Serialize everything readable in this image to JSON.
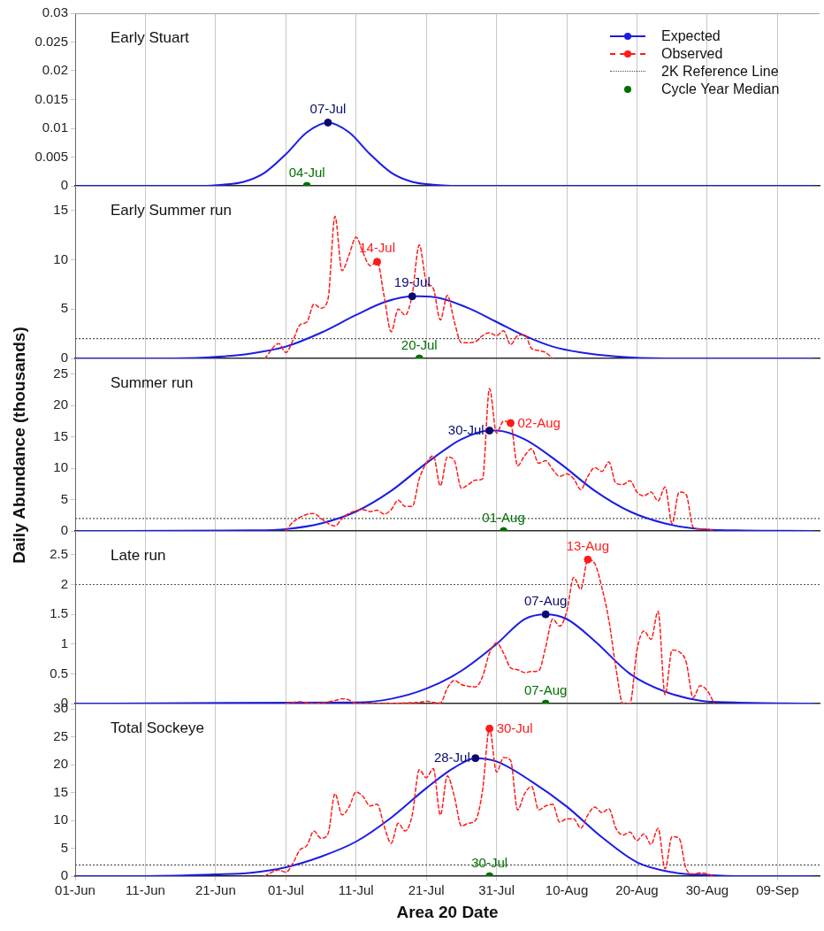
{
  "chart_data": [
    {
      "type": "line",
      "title": "Early Stuart",
      "xlim": [
        "--06-01",
        "--09-15"
      ],
      "xticks": [
        {
          "value": "--06-01",
          "label": "01-Jun"
        },
        {
          "value": "--06-11",
          "label": "11-Jun"
        },
        {
          "value": "--06-21",
          "label": "21-Jun"
        },
        {
          "value": "--07-01",
          "label": "01-Jul"
        },
        {
          "value": "--07-11",
          "label": "11-Jul"
        },
        {
          "value": "--07-21",
          "label": "21-Jul"
        },
        {
          "value": "--07-31",
          "label": "31-Jul"
        },
        {
          "value": "--08-10",
          "label": "10-Aug"
        },
        {
          "value": "--08-20",
          "label": "20-Aug"
        },
        {
          "value": "--08-30",
          "label": "30-Aug"
        },
        {
          "value": "--09-09",
          "label": "09-Sep"
        }
      ],
      "ylim": [
        0,
        0.03
      ],
      "yticks": [
        0,
        0.005,
        0.01,
        0.015,
        0.02,
        0.025,
        0.03
      ],
      "grid": "x",
      "tick_labels": "y",
      "series": [
        {
          "color": "#1c1ce6",
          "x": [
            "--06-01",
            "--06-19",
            "--06-22",
            "--06-25",
            "--06-28",
            "--07-01",
            "--07-04",
            "--07-07",
            "--07-10",
            "--07-13",
            "--07-16",
            "--07-19",
            "--07-22",
            "--07-25",
            "--09-14"
          ],
          "values": [
            0,
            0,
            0.0002,
            0.0007,
            0.0023,
            0.0055,
            0.0093,
            0.011,
            0.0093,
            0.0055,
            0.0023,
            0.0007,
            0.0002,
            0,
            0
          ]
        },
        {
          "type": "scatter",
          "color": "#0a0a70",
          "x": [
            "--07-07"
          ],
          "values": [
            0.011
          ]
        },
        {
          "type": "scatter",
          "color": "#007000",
          "x": [
            "--07-04"
          ],
          "values": [
            0
          ]
        }
      ],
      "annotations": [
        {
          "text": "07-Jul",
          "x": "--07-07",
          "y": 0.011
        },
        {
          "text": "04-Jul",
          "x": "--07-04",
          "y": 0
        }
      ]
    },
    {
      "type": "line",
      "title": "Early Summer run",
      "xlim": [
        "--06-01",
        "--09-15"
      ],
      "xticks": [
        {
          "value": "--06-01",
          "label": "01-Jun"
        },
        {
          "value": "--06-11",
          "label": "11-Jun"
        },
        {
          "value": "--06-21",
          "label": "21-Jun"
        },
        {
          "value": "--07-01",
          "label": "01-Jul"
        },
        {
          "value": "--07-11",
          "label": "11-Jul"
        },
        {
          "value": "--07-21",
          "label": "21-Jul"
        },
        {
          "value": "--07-31",
          "label": "31-Jul"
        },
        {
          "value": "--08-10",
          "label": "10-Aug"
        },
        {
          "value": "--08-20",
          "label": "20-Aug"
        },
        {
          "value": "--08-30",
          "label": "30-Aug"
        },
        {
          "value": "--09-09",
          "label": "09-Sep"
        }
      ],
      "ylim": [
        0,
        17.5
      ],
      "yticks": [
        0,
        5,
        10,
        15
      ],
      "grid": "x",
      "tick_labels": "y",
      "legend": "top right",
      "series": [
        {
          "name": "Expected",
          "color": "#1c1ce6",
          "x": [
            "--06-01",
            "--06-15",
            "--06-22",
            "--06-26",
            "--07-01",
            "--07-06",
            "--07-11",
            "--07-15",
            "--07-19",
            "--07-20",
            "--07-23",
            "--07-27",
            "--07-31",
            "--08-04",
            "--08-08",
            "--08-12",
            "--08-17",
            "--08-24",
            "--09-14"
          ],
          "values": [
            0,
            0,
            0.2,
            0.5,
            1.2,
            2.6,
            4.4,
            5.7,
            6.3,
            6.3,
            6.1,
            5.1,
            3.7,
            2.3,
            1.2,
            0.6,
            0.2,
            0,
            0
          ]
        },
        {
          "name": "Observed",
          "line_style": "dashed",
          "color": "#ff1a1a",
          "x": [
            "--06-28",
            "--06-30",
            "--07-01",
            "--07-02",
            "--07-03",
            "--07-04",
            "--07-05",
            "--07-06",
            "--07-07",
            "--07-08",
            "--07-09",
            "--07-10",
            "--07-11",
            "--07-12",
            "--07-13",
            "--07-14",
            "--07-15",
            "--07-16",
            "--07-17",
            "--07-18",
            "--07-19",
            "--07-20",
            "--07-21",
            "--07-22",
            "--07-23",
            "--07-24",
            "--07-25",
            "--07-26",
            "--07-27",
            "--07-28",
            "--07-29",
            "--07-30",
            "--07-31",
            "--08-01",
            "--08-02",
            "--08-03",
            "--08-04",
            "--08-05",
            "--08-06",
            "--08-07",
            "--08-08"
          ],
          "values": [
            0,
            1.5,
            0.6,
            1.8,
            3.4,
            3.7,
            5.5,
            5.1,
            6.0,
            14.4,
            8.9,
            10.5,
            12.3,
            10.7,
            9.4,
            9.8,
            6.3,
            2.7,
            5.0,
            4.4,
            6.5,
            11.5,
            7.8,
            7.1,
            3.9,
            6.4,
            3.7,
            1.6,
            1.6,
            1.7,
            2.3,
            2.6,
            2.3,
            2.8,
            1.4,
            2.3,
            2.4,
            1.0,
            0.8,
            0.6,
            0
          ]
        },
        {
          "type": "scatter",
          "color": "#ff1a1a",
          "x": [
            "--07-14"
          ],
          "values": [
            9.8
          ]
        },
        {
          "type": "scatter",
          "color": "#0a0a70",
          "x": [
            "--07-19"
          ],
          "values": [
            6.3
          ]
        },
        {
          "name": "Cycle Year Median",
          "type": "scatter",
          "color": "#007000",
          "x": [
            "--07-20"
          ],
          "values": [
            0
          ]
        }
      ],
      "ref_lines": [
        {
          "axis": "y",
          "value": 2,
          "label": "2K Reference Line",
          "color": "#555555",
          "line_style": "dotted"
        }
      ],
      "annotations": [
        {
          "text": "14-Jul",
          "x": "--07-14",
          "y": 9.8
        },
        {
          "text": "19-Jul",
          "x": "--07-19",
          "y": 6.3
        },
        {
          "text": "20-Jul",
          "x": "--07-20",
          "y": 0
        }
      ]
    },
    {
      "type": "line",
      "title": "Summer run",
      "ylabel": "Daily Abundance (thousands)",
      "xlim": [
        "--06-01",
        "--09-15"
      ],
      "xticks": [
        {
          "value": "--06-01",
          "label": "01-Jun"
        },
        {
          "value": "--06-11",
          "label": "11-Jun"
        },
        {
          "value": "--06-21",
          "label": "21-Jun"
        },
        {
          "value": "--07-01",
          "label": "01-Jul"
        },
        {
          "value": "--07-11",
          "label": "11-Jul"
        },
        {
          "value": "--07-21",
          "label": "21-Jul"
        },
        {
          "value": "--07-31",
          "label": "31-Jul"
        },
        {
          "value": "--08-10",
          "label": "10-Aug"
        },
        {
          "value": "--08-20",
          "label": "20-Aug"
        },
        {
          "value": "--08-30",
          "label": "30-Aug"
        },
        {
          "value": "--09-09",
          "label": "09-Sep"
        }
      ],
      "ylim": [
        0,
        27.5
      ],
      "yticks": [
        0,
        5,
        10,
        15,
        20,
        25
      ],
      "grid": "x",
      "tick_labels": "y",
      "series": [
        {
          "color": "#1c1ce6",
          "x": [
            "--06-01",
            "--06-26",
            "--07-01",
            "--07-06",
            "--07-11",
            "--07-16",
            "--07-21",
            "--07-26",
            "--07-30",
            "--07-31",
            "--08-04",
            "--08-09",
            "--08-14",
            "--08-19",
            "--08-24",
            "--08-29",
            "--09-03",
            "--09-14"
          ],
          "values": [
            0,
            0.1,
            0.3,
            1.2,
            3.1,
            6.4,
            10.8,
            14.6,
            16.0,
            16.0,
            14.6,
            10.8,
            6.4,
            3.1,
            1.2,
            0.3,
            0.1,
            0
          ]
        },
        {
          "line_style": "dashed",
          "color": "#ff1a1a",
          "x": [
            "--07-01",
            "--07-02",
            "--07-05",
            "--07-06",
            "--07-08",
            "--07-09",
            "--07-10",
            "--07-12",
            "--07-13",
            "--07-14",
            "--07-15",
            "--07-16",
            "--07-17",
            "--07-18",
            "--07-19",
            "--07-20",
            "--07-21",
            "--07-22",
            "--07-23",
            "--07-24",
            "--07-25",
            "--07-26",
            "--07-27",
            "--07-28",
            "--07-29",
            "--07-30",
            "--07-31",
            "--08-01",
            "--08-02",
            "--08-03",
            "--08-04",
            "--08-05",
            "--08-06",
            "--08-07",
            "--08-08",
            "--08-09",
            "--08-10",
            "--08-11",
            "--08-12",
            "--08-13",
            "--08-14",
            "--08-15",
            "--08-16",
            "--08-17",
            "--08-18",
            "--08-19",
            "--08-20",
            "--08-21",
            "--08-22",
            "--08-23",
            "--08-24",
            "--08-25",
            "--08-26",
            "--08-27",
            "--08-28",
            "--08-29",
            "--08-30",
            "--08-31"
          ],
          "values": [
            0,
            1.4,
            2.8,
            2.0,
            0.8,
            2.0,
            2.8,
            3.4,
            3.1,
            3.3,
            2.7,
            3.4,
            4.9,
            3.9,
            3.9,
            8.3,
            10.8,
            12.0,
            7.2,
            11.8,
            11.2,
            6.8,
            7.4,
            8.1,
            8.3,
            22.7,
            15.6,
            17.5,
            17.2,
            10.4,
            12.0,
            13.1,
            10.8,
            11.2,
            9.8,
            8.7,
            9.1,
            8.3,
            6.6,
            8.7,
            10.1,
            9.5,
            11.0,
            7.6,
            7.4,
            8.0,
            6.2,
            5.6,
            6.2,
            4.8,
            7.0,
            1.2,
            6.2,
            5.8,
            0.6,
            0.3,
            0.3,
            0
          ]
        },
        {
          "type": "scatter",
          "color": "#0a0a70",
          "x": [
            "--07-30"
          ],
          "values": [
            16.0
          ]
        },
        {
          "type": "scatter",
          "color": "#ff1a1a",
          "x": [
            "--08-02"
          ],
          "values": [
            17.2
          ]
        },
        {
          "type": "scatter",
          "color": "#007000",
          "x": [
            "--08-01"
          ],
          "values": [
            0
          ]
        }
      ],
      "ref_lines": [
        {
          "axis": "y",
          "value": 2,
          "color": "#555555",
          "line_style": "dotted"
        }
      ],
      "annotations": [
        {
          "text": "30-Jul",
          "x": "--07-30",
          "y": 16.0
        },
        {
          "text": "02-Aug",
          "x": "--08-02",
          "y": 17.2
        },
        {
          "text": "01-Aug",
          "x": "--08-01",
          "y": 0
        }
      ]
    },
    {
      "type": "line",
      "title": "Late run",
      "xlim": [
        "--06-01",
        "--09-15"
      ],
      "xticks": [
        {
          "value": "--06-01",
          "label": "01-Jun"
        },
        {
          "value": "--06-11",
          "label": "11-Jun"
        },
        {
          "value": "--06-21",
          "label": "21-Jun"
        },
        {
          "value": "--07-01",
          "label": "01-Jul"
        },
        {
          "value": "--07-11",
          "label": "11-Jul"
        },
        {
          "value": "--07-21",
          "label": "21-Jul"
        },
        {
          "value": "--07-31",
          "label": "31-Jul"
        },
        {
          "value": "--08-10",
          "label": "10-Aug"
        },
        {
          "value": "--08-20",
          "label": "20-Aug"
        },
        {
          "value": "--08-30",
          "label": "30-Aug"
        },
        {
          "value": "--09-09",
          "label": "09-Sep"
        }
      ],
      "ylim": [
        0,
        2.9
      ],
      "yticks": [
        0,
        0.5,
        1,
        1.5,
        2,
        2.5
      ],
      "grid": "x",
      "tick_labels": "y",
      "series": [
        {
          "color": "#1c1ce6",
          "x": [
            "--06-01",
            "--07-11",
            "--07-16",
            "--07-21",
            "--07-26",
            "--07-31",
            "--08-04",
            "--08-07",
            "--08-10",
            "--08-14",
            "--08-19",
            "--08-24",
            "--08-29",
            "--09-03",
            "--09-14"
          ],
          "values": [
            0,
            0.02,
            0.08,
            0.25,
            0.55,
            1.0,
            1.42,
            1.5,
            1.42,
            1.05,
            0.5,
            0.2,
            0.05,
            0.02,
            0
          ]
        },
        {
          "line_style": "dashed",
          "color": "#ff1a1a",
          "x": [
            "--07-01",
            "--07-03",
            "--07-05",
            "--07-08",
            "--07-09",
            "--07-10",
            "--07-11",
            "--07-20",
            "--07-21",
            "--07-22",
            "--07-23",
            "--07-24",
            "--07-25",
            "--07-26",
            "--07-27",
            "--07-28",
            "--07-29",
            "--07-30",
            "--07-31",
            "--08-01",
            "--08-02",
            "--08-03",
            "--08-04",
            "--08-05",
            "--08-06",
            "--08-07",
            "--08-08",
            "--08-09",
            "--08-10",
            "--08-11",
            "--08-12",
            "--08-13",
            "--08-14",
            "--08-15",
            "--08-16",
            "--08-17",
            "--08-18",
            "--08-19",
            "--08-20",
            "--08-21",
            "--08-22",
            "--08-23",
            "--08-24",
            "--08-25",
            "--08-26",
            "--08-27",
            "--08-28",
            "--08-29",
            "--08-30",
            "--08-31"
          ],
          "values": [
            0,
            0.03,
            0,
            0.05,
            0.08,
            0.06,
            0,
            0.02,
            0.04,
            0.02,
            0.01,
            0.26,
            0.39,
            0.32,
            0.29,
            0.28,
            0.45,
            0.85,
            1.02,
            0.85,
            0.6,
            0.57,
            0.52,
            0.54,
            0.55,
            0.95,
            1.42,
            1.3,
            1.55,
            2.12,
            1.92,
            2.42,
            2.35,
            1.95,
            1.4,
            0.6,
            0,
            0,
            0.9,
            1.22,
            1.08,
            1.55,
            0.15,
            0.9,
            0.87,
            0.7,
            0.1,
            0.3,
            0.22,
            0
          ]
        },
        {
          "type": "scatter",
          "color": "#ff1a1a",
          "x": [
            "--08-13"
          ],
          "values": [
            2.42
          ]
        },
        {
          "type": "scatter",
          "color": "#0a0a70",
          "x": [
            "--08-07"
          ],
          "values": [
            1.5
          ]
        },
        {
          "type": "scatter",
          "color": "#007000",
          "x": [
            "--08-07"
          ],
          "values": [
            0
          ]
        }
      ],
      "ref_lines": [
        {
          "axis": "y",
          "value": 2,
          "color": "#555555",
          "line_style": "dotted"
        }
      ],
      "annotations": [
        {
          "text": "13-Aug",
          "x": "--08-13",
          "y": 2.42
        },
        {
          "text": "07-Aug",
          "x": "--08-07",
          "y": 1.5
        },
        {
          "text": "07-Aug",
          "x": "--08-07",
          "y": 0
        }
      ]
    },
    {
      "type": "line",
      "title": "Total Sockeye",
      "xlabel": "Area 20 Date",
      "xlim": [
        "--06-01",
        "--09-15"
      ],
      "xticks": [
        {
          "value": "--06-01",
          "label": "01-Jun"
        },
        {
          "value": "--06-11",
          "label": "11-Jun"
        },
        {
          "value": "--06-21",
          "label": "21-Jun"
        },
        {
          "value": "--07-01",
          "label": "01-Jul"
        },
        {
          "value": "--07-11",
          "label": "11-Jul"
        },
        {
          "value": "--07-21",
          "label": "21-Jul"
        },
        {
          "value": "--07-31",
          "label": "31-Jul"
        },
        {
          "value": "--08-10",
          "label": "10-Aug"
        },
        {
          "value": "--08-20",
          "label": "20-Aug"
        },
        {
          "value": "--08-30",
          "label": "30-Aug"
        },
        {
          "value": "--09-09",
          "label": "09-Sep"
        }
      ],
      "ylim": [
        0,
        31
      ],
      "yticks": [
        0,
        5,
        10,
        15,
        20,
        25,
        30
      ],
      "grid": "x",
      "series": [
        {
          "color": "#1c1ce6",
          "x": [
            "--06-01",
            "--06-11",
            "--06-21",
            "--06-26",
            "--07-01",
            "--07-06",
            "--07-11",
            "--07-16",
            "--07-21",
            "--07-25",
            "--07-28",
            "--07-31",
            "--08-05",
            "--08-10",
            "--08-15",
            "--08-20",
            "--08-25",
            "--08-30",
            "--09-04",
            "--09-14"
          ],
          "values": [
            0,
            0,
            0.3,
            0.6,
            1.6,
            3.5,
            6.2,
            10.5,
            15.8,
            19.5,
            21.2,
            20.6,
            17.0,
            12.5,
            7.0,
            2.5,
            0.7,
            0.2,
            0,
            0
          ]
        },
        {
          "line_style": "dashed",
          "color": "#ff1a1a",
          "x": [
            "--06-28",
            "--06-29",
            "--06-30",
            "--07-01",
            "--07-02",
            "--07-03",
            "--07-04",
            "--07-05",
            "--07-06",
            "--07-07",
            "--07-08",
            "--07-09",
            "--07-10",
            "--07-11",
            "--07-12",
            "--07-13",
            "--07-14",
            "--07-15",
            "--07-16",
            "--07-17",
            "--07-18",
            "--07-19",
            "--07-20",
            "--07-21",
            "--07-22",
            "--07-23",
            "--07-24",
            "--07-25",
            "--07-26",
            "--07-27",
            "--07-28",
            "--07-29",
            "--07-30",
            "--07-31",
            "--08-01",
            "--08-02",
            "--08-03",
            "--08-04",
            "--08-05",
            "--08-06",
            "--08-07",
            "--08-08",
            "--08-09",
            "--08-10",
            "--08-11",
            "--08-12",
            "--08-13",
            "--08-14",
            "--08-15",
            "--08-16",
            "--08-17",
            "--08-18",
            "--08-19",
            "--08-20",
            "--08-21",
            "--08-22",
            "--08-23",
            "--08-24",
            "--08-25",
            "--08-26",
            "--08-27",
            "--08-28",
            "--08-29",
            "--08-30",
            "--08-31"
          ],
          "values": [
            0,
            0.7,
            1.1,
            0.7,
            2.3,
            4.7,
            5.5,
            8.1,
            6.8,
            7.6,
            14.8,
            11.0,
            12.4,
            15.1,
            14.3,
            12.6,
            12.9,
            9.0,
            5.9,
            9.5,
            8.1,
            11.0,
            19.1,
            17.7,
            19.3,
            11.0,
            18.0,
            14.3,
            9.0,
            9.5,
            10.0,
            15.3,
            26.5,
            18.7,
            21.3,
            20.8,
            11.9,
            14.8,
            16.1,
            11.9,
            12.6,
            12.9,
            9.7,
            10.3,
            10.3,
            8.6,
            11.0,
            12.4,
            11.4,
            12.1,
            8.6,
            7.4,
            7.9,
            6.4,
            7.6,
            5.7,
            8.6,
            1.3,
            7.1,
            6.8,
            1.3,
            0.4,
            0.6,
            0.4,
            0
          ]
        },
        {
          "type": "scatter",
          "color": "#ff1a1a",
          "x": [
            "--07-30"
          ],
          "values": [
            26.5
          ]
        },
        {
          "type": "scatter",
          "color": "#0a0a70",
          "x": [
            "--07-28"
          ],
          "values": [
            21.2
          ]
        },
        {
          "type": "scatter",
          "color": "#007000",
          "x": [
            "--07-30"
          ],
          "values": [
            0
          ]
        }
      ],
      "ref_lines": [
        {
          "axis": "y",
          "value": 2,
          "color": "#555555",
          "line_style": "dotted"
        }
      ],
      "annotations": [
        {
          "text": "30-Jul",
          "x": "--07-30",
          "y": 26.5
        },
        {
          "text": "28-Jul",
          "x": "--07-28",
          "y": 21.2
        },
        {
          "text": "30-Jul",
          "x": "--07-30",
          "y": 0
        }
      ]
    }
  ]
}
